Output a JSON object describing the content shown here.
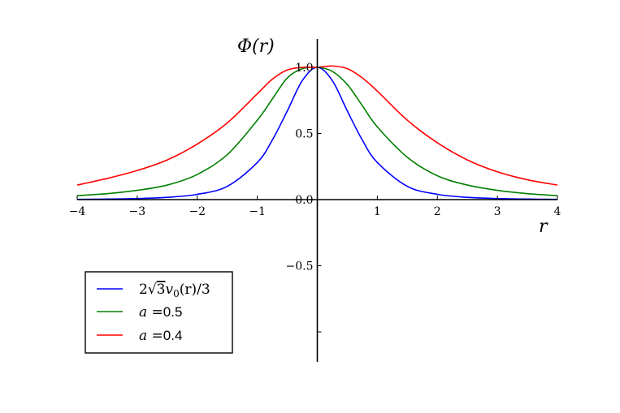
{
  "chart_data": {
    "type": "line",
    "title": "",
    "xlabel": "r",
    "ylabel": "Φ(r)",
    "xlim": [
      -4,
      4
    ],
    "ylim": [
      -1.2,
      1.2
    ],
    "grid": false,
    "legend_position": "lower-left",
    "x_ticks": [
      -4,
      -3,
      -2,
      -1,
      0,
      1,
      2,
      3,
      4
    ],
    "x_tick_labels": [
      "−4",
      "−3",
      "−2",
      "−1",
      "",
      "1",
      "2",
      "3",
      "4"
    ],
    "y_ticks": [
      -1.0,
      -0.5,
      0.0,
      0.5,
      1.0
    ],
    "y_tick_labels": [
      "",
      "−0.5",
      "0.0",
      "0.5",
      "1.0"
    ],
    "x": [
      -4,
      -3.5,
      -3,
      -2.5,
      -2,
      -1.5,
      -1,
      -0.75,
      -0.5,
      -0.25,
      0,
      0.25,
      0.5,
      0.75,
      1,
      1.5,
      2,
      2.5,
      3,
      3.5,
      4
    ],
    "series": [
      {
        "name": "2√3v0(r)/3",
        "legend_parts": {
          "prefix": "2",
          "radical": "√",
          "radicand": "3",
          "var": "v",
          "sub": "0",
          "suffix": "(r)/3"
        },
        "color": "#0000ff",
        "values": [
          0.002,
          0.004,
          0.008,
          0.017,
          0.04,
          0.1,
          0.28,
          0.45,
          0.67,
          0.9,
          1.0,
          0.9,
          0.67,
          0.45,
          0.28,
          0.1,
          0.04,
          0.017,
          0.008,
          0.004,
          0.002
        ]
      },
      {
        "name": "a =0.5",
        "legend_parts": {
          "var": "a",
          "eq": " =",
          "value": "0.5"
        },
        "color": "#008000",
        "values": [
          0.03,
          0.045,
          0.07,
          0.11,
          0.19,
          0.34,
          0.6,
          0.76,
          0.92,
          0.99,
          1.0,
          0.97,
          0.87,
          0.71,
          0.55,
          0.32,
          0.18,
          0.11,
          0.07,
          0.045,
          0.03
        ]
      },
      {
        "name": "a =0.4",
        "legend_parts": {
          "var": "a",
          "eq": " =",
          "value": "0.4"
        },
        "color": "#ff0000",
        "values": [
          0.11,
          0.16,
          0.22,
          0.3,
          0.42,
          0.58,
          0.8,
          0.91,
          0.98,
          1.0,
          1.0,
          1.01,
          0.99,
          0.92,
          0.82,
          0.6,
          0.43,
          0.3,
          0.21,
          0.15,
          0.11
        ]
      }
    ]
  }
}
